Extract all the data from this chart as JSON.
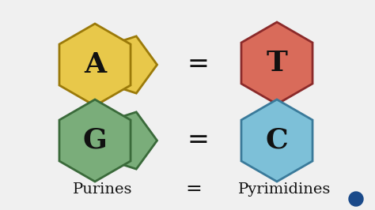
{
  "bg_color": "#f0f0f0",
  "purine_A_color": "#E8C84A",
  "purine_A_edge": "#9B7A0A",
  "purine_G_color": "#7AAD7A",
  "purine_G_edge": "#3A6A3A",
  "pyrimidine_T_color": "#D96B5A",
  "pyrimidine_T_edge": "#8B2A2A",
  "pyrimidine_C_color": "#7DC0D8",
  "pyrimidine_C_edge": "#3A7A9A",
  "label_A": "A",
  "label_G": "G",
  "label_T": "T",
  "label_C": "C",
  "label_purines": "Purines",
  "label_pyrimidines": "Pyrimidines",
  "equals_sign": "=",
  "dot_color": "#1A4A8A",
  "text_color": "#111111"
}
